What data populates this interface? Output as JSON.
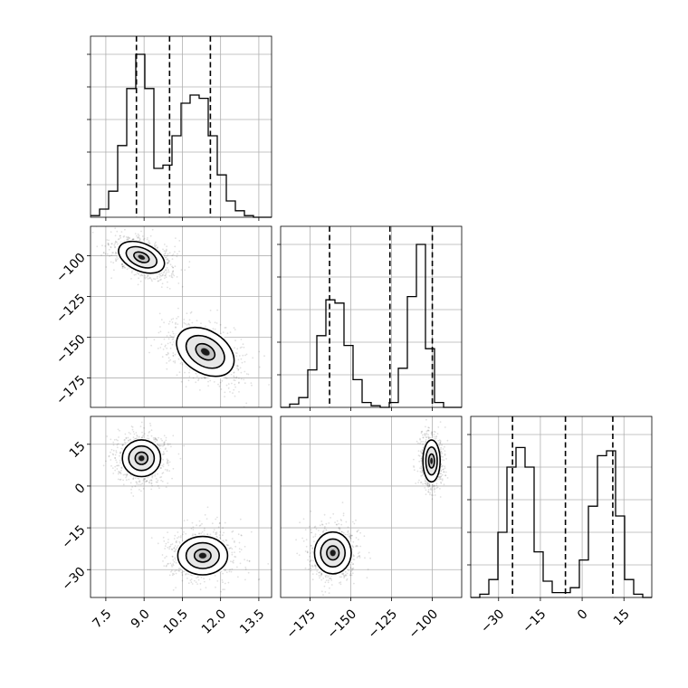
{
  "chart_data": {
    "type": "corner",
    "grid": true,
    "parameters": [
      {
        "id": "p0",
        "range": [
          6.9,
          14.0
        ],
        "ticks": [
          7.5,
          9.0,
          10.5,
          12.0,
          13.5
        ],
        "tick_labels": [
          "7.5",
          "9.0",
          "10.5",
          "12.0",
          "13.5"
        ],
        "quantiles": [
          8.7,
          10.0,
          11.6
        ],
        "hist": {
          "edges": [
            6.9,
            7.255,
            7.61,
            7.965,
            8.32,
            8.675,
            9.03,
            9.385,
            9.74,
            10.095,
            10.45,
            10.805,
            11.16,
            11.515,
            11.87,
            12.225,
            12.58,
            12.935,
            13.29,
            13.645,
            14.0
          ],
          "counts": [
            0.01,
            0.05,
            0.16,
            0.44,
            0.79,
            1.0,
            0.79,
            0.3,
            0.32,
            0.5,
            0.7,
            0.75,
            0.73,
            0.5,
            0.26,
            0.1,
            0.04,
            0.01,
            0.0,
            0.0
          ]
        }
      },
      {
        "id": "p1",
        "range": [
          -193,
          -82
        ],
        "ticks": [
          -100,
          -125,
          -150,
          -175
        ],
        "tick_labels": [
          "−100",
          "−125",
          "−150",
          "−175"
        ],
        "x_ticks": [
          -175,
          -150,
          -125,
          -100
        ],
        "x_tick_labels": [
          "−175",
          "−150",
          "−125",
          "−100"
        ],
        "quantiles": [
          -163,
          -126,
          -100
        ],
        "hist": {
          "edges": [
            -193,
            -187.45,
            -181.9,
            -176.35,
            -170.8,
            -165.25,
            -159.7,
            -154.15,
            -148.6,
            -143.05,
            -137.5,
            -131.95,
            -126.4,
            -120.85,
            -115.3,
            -109.75,
            -104.2,
            -98.65,
            -93.1,
            -87.55,
            -82
          ],
          "counts": [
            0.0,
            0.02,
            0.06,
            0.23,
            0.44,
            0.66,
            0.64,
            0.38,
            0.17,
            0.03,
            0.01,
            0.0,
            0.03,
            0.24,
            0.68,
            1.0,
            0.36,
            0.03,
            0.0,
            0.0
          ]
        }
      },
      {
        "id": "p2",
        "range": [
          -40,
          25
        ],
        "ticks": [
          15,
          0,
          -15,
          -30
        ],
        "tick_labels": [
          "15",
          "0",
          "−15",
          "−30"
        ],
        "x_ticks": [
          -30,
          -15,
          0,
          15
        ],
        "x_tick_labels": [
          "−30",
          "−15",
          "0",
          "15"
        ],
        "quantiles": [
          -25,
          -6,
          11
        ],
        "hist": {
          "edges": [
            -40,
            -36.75,
            -33.5,
            -30.25,
            -27,
            -23.75,
            -20.5,
            -17.25,
            -14,
            -10.75,
            -7.5,
            -4.25,
            -1,
            2.25,
            5.5,
            8.75,
            12,
            15.25,
            18.5,
            21.75,
            25
          ],
          "counts": [
            0.0,
            0.02,
            0.11,
            0.4,
            0.8,
            0.92,
            0.8,
            0.28,
            0.1,
            0.03,
            0.03,
            0.06,
            0.23,
            0.56,
            0.87,
            0.9,
            0.5,
            0.11,
            0.02,
            0.0
          ]
        }
      }
    ],
    "pairs": [
      {
        "x": 0,
        "y": 1,
        "modes": [
          {
            "center": [
              8.9,
              -101
            ],
            "sd": [
              0.6,
              6.5
            ],
            "rho": -0.4,
            "frac": 0.5
          },
          {
            "center": [
              11.4,
              -159
            ],
            "sd": [
              0.75,
              10
            ],
            "rho": -0.35,
            "frac": 0.5
          }
        ]
      },
      {
        "x": 0,
        "y": 2,
        "modes": [
          {
            "center": [
              8.9,
              10
            ],
            "sd": [
              0.5,
              4.4
            ],
            "rho": 0,
            "frac": 0.5
          },
          {
            "center": [
              11.3,
              -25
            ],
            "sd": [
              0.65,
              4.6
            ],
            "rho": 0,
            "frac": 0.5
          }
        ]
      },
      {
        "x": 1,
        "y": 2,
        "modes": [
          {
            "center": [
              -100.5,
              9
            ],
            "sd": [
              3.5,
              5
            ],
            "rho": 0,
            "frac": 0.5
          },
          {
            "center": [
              -161,
              -24
            ],
            "sd": [
              7.5,
              5
            ],
            "rho": 0,
            "frac": 0.5
          }
        ]
      }
    ],
    "contour_levels": [
      0.5,
      1.0,
      1.5
    ],
    "colors": {
      "line": "#000000",
      "grid": "#b0b0b0",
      "density": "#000000"
    }
  }
}
